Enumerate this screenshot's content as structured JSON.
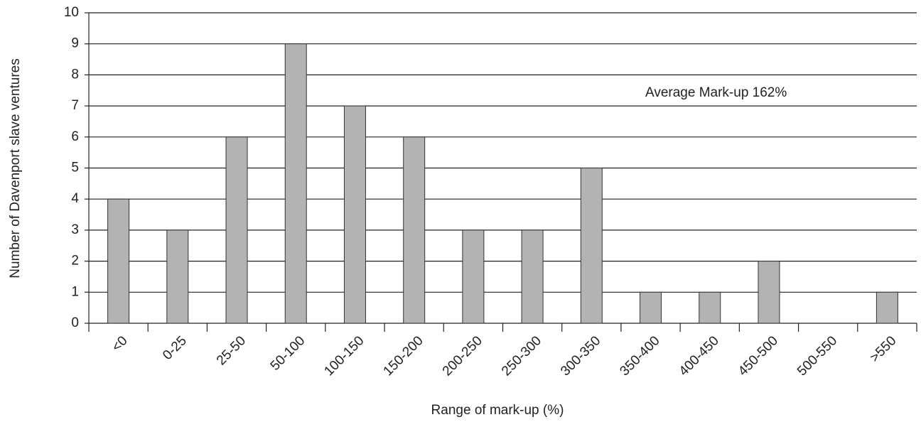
{
  "chart_data": {
    "type": "bar",
    "x_label": "Range of mark-up (%)",
    "y_label": "Number of Davenport slave ventures",
    "annotation": "Average Mark-up 162%",
    "categories": [
      "<0",
      "0-25",
      "25-50",
      "50-100",
      "100-150",
      "150-200",
      "200-250",
      "250-300",
      "300-350",
      "350-400",
      "400-450",
      "450-500",
      "500-550",
      ">550"
    ],
    "values": [
      4,
      3,
      6,
      9,
      7,
      6,
      3,
      3,
      5,
      1,
      1,
      2,
      0,
      1
    ],
    "color": "#b3b3b3",
    "ylim": [
      0,
      10
    ],
    "yticks": [
      0,
      1,
      2,
      3,
      4,
      5,
      6,
      7,
      8,
      9,
      10
    ],
    "grid": true
  }
}
